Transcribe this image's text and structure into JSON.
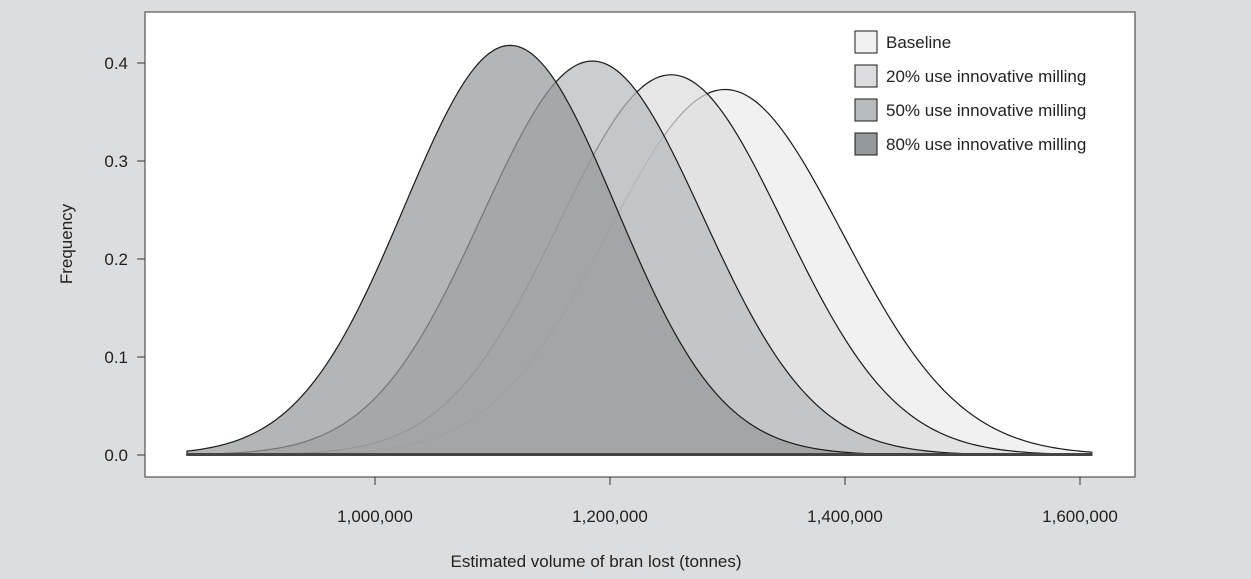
{
  "chart_data": {
    "type": "area",
    "title": "",
    "xlabel": "Estimated volume of bran lost (tonnes)",
    "ylabel": "Frequency",
    "xlim": [
      840000,
      1610000
    ],
    "ylim": [
      0,
      0.42
    ],
    "x_ticks": [
      {
        "value": 1000000,
        "label": "1,000,000"
      },
      {
        "value": 1200000,
        "label": "1,200,000"
      },
      {
        "value": 1400000,
        "label": "1,400,000"
      },
      {
        "value": 1600000,
        "label": "1,600,000"
      }
    ],
    "y_ticks": [
      {
        "value": 0.0,
        "label": "0.0"
      },
      {
        "value": 0.1,
        "label": "0.1"
      },
      {
        "value": 0.2,
        "label": "0.2"
      },
      {
        "value": 0.3,
        "label": "0.3"
      },
      {
        "value": 0.4,
        "label": "0.4"
      }
    ],
    "grid": false,
    "legend_position": "top-right",
    "series": [
      {
        "name": "Baseline",
        "peak_x": 1298000,
        "peak_y": 0.373,
        "sd": 100000,
        "color": "#f1f1f1",
        "stroke": "#1a1a1a"
      },
      {
        "name": "20% use innovative milling",
        "peak_x": 1252000,
        "peak_y": 0.388,
        "sd": 96000,
        "color": "#dcdcde",
        "stroke": "#1a1a1a"
      },
      {
        "name": "50% use innovative milling",
        "peak_x": 1185000,
        "peak_y": 0.402,
        "sd": 94000,
        "color": "#b9babc",
        "stroke": "#1a1a1a"
      },
      {
        "name": "80% use innovative milling",
        "peak_x": 1115000,
        "peak_y": 0.418,
        "sd": 90000,
        "color": "#97989a",
        "stroke": "#1a1a1a"
      }
    ]
  }
}
